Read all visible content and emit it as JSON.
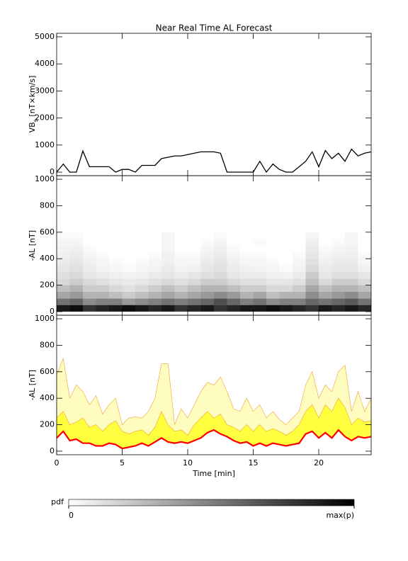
{
  "chart_data": [
    {
      "type": "line",
      "title": "Near Real Time AL Forecast",
      "ylabel": [
        "VB",
        "s",
        " [nT×km/s]"
      ],
      "color": "#000000",
      "x": [
        0,
        0.5,
        1,
        1.5,
        2,
        2.5,
        3,
        3.5,
        4,
        4.5,
        5,
        5.5,
        6,
        6.5,
        7,
        7.5,
        8,
        8.5,
        9,
        9.5,
        10,
        10.5,
        11,
        11.5,
        12,
        12.5,
        13,
        13.5,
        14,
        14.5,
        15,
        15.5,
        16,
        16.5,
        17,
        17.5,
        18,
        18.5,
        19,
        19.5,
        20,
        20.5,
        21,
        21.5,
        22,
        22.5,
        23,
        23.5,
        24
      ],
      "values": [
        0,
        300,
        0,
        0,
        780,
        200,
        200,
        200,
        200,
        0,
        100,
        100,
        0,
        250,
        250,
        250,
        500,
        550,
        600,
        600,
        650,
        700,
        750,
        750,
        750,
        700,
        0,
        0,
        0,
        0,
        0,
        400,
        0,
        300,
        100,
        0,
        0,
        200,
        400,
        750,
        200,
        800,
        500,
        700,
        400,
        850,
        600,
        700,
        750
      ],
      "xlim": [
        0,
        24
      ],
      "ylim": [
        -130,
        5130
      ],
      "yticks": [
        0,
        1000,
        2000,
        3000,
        4000,
        5000
      ]
    },
    {
      "type": "heatmap",
      "ylabel": "-AL [nT]",
      "xbins": [
        0,
        1,
        2,
        3,
        4,
        5,
        6,
        7,
        8,
        9,
        10,
        11,
        12,
        13,
        14,
        15,
        16,
        17,
        18,
        19,
        20,
        21,
        22,
        23,
        24
      ],
      "ybins": [
        0,
        50,
        100,
        150,
        200,
        250,
        300,
        350,
        400,
        450,
        500,
        550,
        600
      ],
      "z": [
        [
          0.9,
          0.95,
          0.8,
          0.85,
          0.9,
          0.95,
          0.9,
          0.85,
          0.9,
          0.8,
          0.85,
          0.9,
          0.8,
          0.85,
          0.9,
          0.9,
          0.95,
          0.9,
          0.85,
          0.8,
          0.9,
          0.85,
          0.9,
          0.85
        ],
        [
          0.55,
          0.6,
          0.45,
          0.5,
          0.5,
          0.4,
          0.45,
          0.5,
          0.55,
          0.5,
          0.55,
          0.6,
          0.7,
          0.6,
          0.5,
          0.55,
          0.45,
          0.5,
          0.5,
          0.6,
          0.55,
          0.6,
          0.65,
          0.55
        ],
        [
          0.35,
          0.4,
          0.3,
          0.3,
          0.25,
          0.2,
          0.25,
          0.3,
          0.35,
          0.3,
          0.35,
          0.4,
          0.45,
          0.4,
          0.3,
          0.35,
          0.25,
          0.3,
          0.3,
          0.45,
          0.35,
          0.4,
          0.45,
          0.35
        ],
        [
          0.25,
          0.3,
          0.2,
          0.2,
          0.15,
          0.12,
          0.15,
          0.2,
          0.25,
          0.2,
          0.25,
          0.3,
          0.3,
          0.25,
          0.2,
          0.2,
          0.15,
          0.15,
          0.2,
          0.35,
          0.25,
          0.3,
          0.3,
          0.25
        ],
        [
          0.15,
          0.2,
          0.15,
          0.12,
          0.1,
          0.08,
          0.1,
          0.12,
          0.15,
          0.12,
          0.15,
          0.2,
          0.2,
          0.15,
          0.12,
          0.12,
          0.1,
          0.1,
          0.12,
          0.25,
          0.15,
          0.2,
          0.2,
          0.15
        ],
        [
          0.12,
          0.15,
          0.1,
          0.08,
          0.06,
          0.05,
          0.06,
          0.08,
          0.1,
          0.08,
          0.1,
          0.12,
          0.15,
          0.1,
          0.08,
          0.08,
          0.06,
          0.05,
          0.08,
          0.2,
          0.1,
          0.12,
          0.12,
          0.1
        ],
        [
          0.1,
          0.12,
          0.08,
          0.05,
          0.04,
          0.02,
          0.04,
          0.05,
          0.08,
          0.05,
          0.06,
          0.1,
          0.12,
          0.08,
          0.06,
          0.05,
          0.04,
          0.02,
          0.05,
          0.15,
          0.08,
          0.1,
          0.1,
          0.06
        ],
        [
          0.08,
          0.1,
          0.06,
          0.04,
          0.02,
          0,
          0.02,
          0.04,
          0.06,
          0.04,
          0.04,
          0.08,
          0.1,
          0.06,
          0.04,
          0.04,
          0.02,
          0,
          0.04,
          0.12,
          0.06,
          0.08,
          0.08,
          0.04
        ],
        [
          0.06,
          0.08,
          0.04,
          0.02,
          0,
          0,
          0,
          0.02,
          0.06,
          0.02,
          0.02,
          0.06,
          0.08,
          0.04,
          0.02,
          0.02,
          0,
          0,
          0.02,
          0.1,
          0.04,
          0.06,
          0.06,
          0.02
        ],
        [
          0.05,
          0.06,
          0.02,
          0,
          0,
          0,
          0,
          0,
          0.04,
          0,
          0,
          0.04,
          0.06,
          0.02,
          0,
          0,
          0,
          0,
          0,
          0.08,
          0.02,
          0.04,
          0.05,
          0
        ],
        [
          0.04,
          0.04,
          0,
          0,
          0,
          0,
          0,
          0,
          0.04,
          0,
          0,
          0.02,
          0.04,
          0,
          0,
          0.02,
          0,
          0,
          0,
          0.06,
          0,
          0.02,
          0.04,
          0
        ],
        [
          0.02,
          0.02,
          0,
          0,
          0,
          0,
          0,
          0,
          0.04,
          0,
          0,
          0,
          0.02,
          0,
          0,
          0,
          0,
          0,
          0,
          0.04,
          0,
          0,
          0.04,
          0
        ]
      ],
      "zlim": [
        0,
        1
      ],
      "colorbar": {
        "label": "pdf",
        "ticks": [
          0,
          {
            "value": 1,
            "label": "max(p)"
          }
        ]
      },
      "xlim": [
        0,
        24
      ],
      "ylim": [
        -27,
        1027
      ],
      "yticks": [
        0,
        200,
        400,
        600,
        800,
        1000
      ]
    },
    {
      "type": "band",
      "ylabel": "-AL [nT]",
      "xlabel": "Time [min]",
      "x": [
        0,
        0.5,
        1,
        1.5,
        2,
        2.5,
        3,
        3.5,
        4,
        4.5,
        5,
        5.5,
        6,
        6.5,
        7,
        7.5,
        8,
        8.5,
        9,
        9.5,
        10,
        10.5,
        11,
        11.5,
        12,
        12.5,
        13,
        13.5,
        14,
        14.5,
        15,
        15.5,
        16,
        16.5,
        17,
        17.5,
        18,
        18.5,
        19,
        19.5,
        20,
        20.5,
        21,
        21.5,
        22,
        22.5,
        23,
        23.5,
        24
      ],
      "bands": [
        {
          "color": "#fffcc0",
          "upper": [
            580,
            700,
            400,
            500,
            450,
            350,
            420,
            280,
            350,
            400,
            200,
            250,
            260,
            250,
            300,
            400,
            660,
            660,
            200,
            320,
            250,
            350,
            450,
            520,
            500,
            560,
            450,
            320,
            300,
            400,
            300,
            350,
            250,
            300,
            240,
            200,
            250,
            300,
            500,
            600,
            400,
            500,
            450,
            600,
            650,
            300,
            450,
            300,
            400
          ]
        },
        {
          "color": "#ffff40",
          "upper": [
            250,
            300,
            200,
            220,
            250,
            180,
            200,
            150,
            200,
            230,
            150,
            130,
            150,
            160,
            120,
            180,
            300,
            200,
            150,
            160,
            120,
            200,
            250,
            300,
            250,
            280,
            200,
            180,
            150,
            200,
            150,
            200,
            150,
            170,
            150,
            120,
            150,
            200,
            300,
            350,
            250,
            350,
            300,
            400,
            330,
            200,
            250,
            220,
            230
          ]
        }
      ],
      "line": {
        "color": "#ff0000",
        "values": [
          100,
          150,
          80,
          90,
          60,
          60,
          40,
          40,
          60,
          50,
          20,
          30,
          40,
          60,
          40,
          70,
          100,
          70,
          60,
          70,
          60,
          80,
          100,
          140,
          160,
          130,
          110,
          80,
          60,
          70,
          40,
          60,
          40,
          60,
          50,
          40,
          50,
          60,
          130,
          150,
          100,
          140,
          100,
          160,
          110,
          80,
          110,
          100,
          110
        ]
      },
      "xlim": [
        0,
        24
      ],
      "xticks": [
        0,
        5,
        10,
        15,
        20
      ],
      "ylim": [
        -27,
        1027
      ],
      "yticks": [
        0,
        200,
        400,
        600,
        800,
        1000
      ]
    }
  ]
}
